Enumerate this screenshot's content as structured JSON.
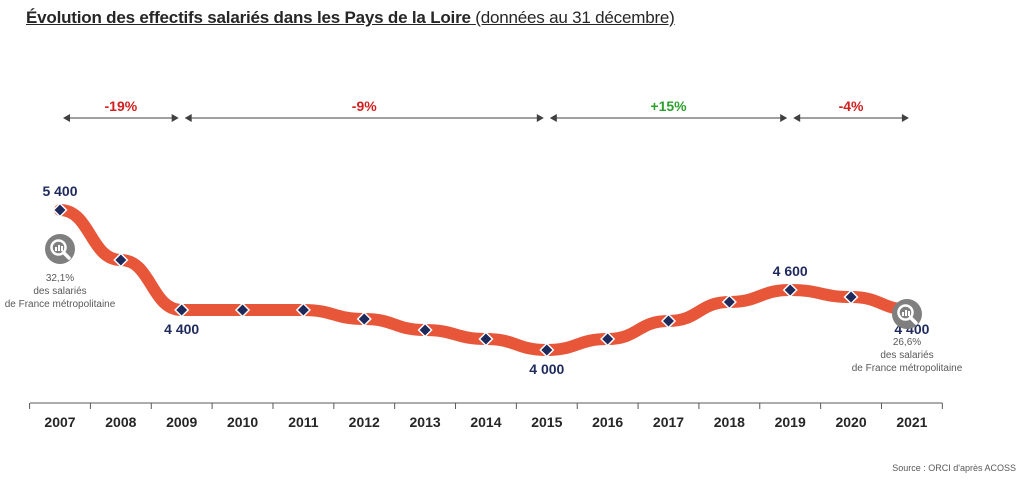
{
  "title": {
    "main": "Évolution des effectifs salariés dans les Pays de la Loire",
    "sub": "(données au 31 décembre)"
  },
  "chart_data": {
    "type": "line",
    "title": "Évolution des effectifs salariés dans les Pays de la Loire (données au 31 décembre)",
    "categories": [
      "2007",
      "2008",
      "2009",
      "2010",
      "2011",
      "2012",
      "2013",
      "2014",
      "2015",
      "2016",
      "2017",
      "2018",
      "2019",
      "2020",
      "2021"
    ],
    "series": [
      {
        "values": [
          5400,
          4900,
          4400,
          4400,
          4400,
          4310,
          4200,
          4110,
          4000,
          4110,
          4290,
          4480,
          4600,
          4530,
          4400
        ],
        "color": "#E8563A",
        "marker_color": "#1F2A5C"
      }
    ],
    "ylim": [
      3500,
      6000
    ],
    "grid": false,
    "data_labels": [
      {
        "index": 0,
        "text": "5 400"
      },
      {
        "index": 2,
        "text": "4 400"
      },
      {
        "index": 8,
        "text": "4 000"
      },
      {
        "index": 12,
        "text": "4 600"
      },
      {
        "index": 14,
        "text": "4 400"
      }
    ],
    "periods": [
      {
        "from": 0,
        "to": 2,
        "label": "-19%",
        "color": "#D11F1F"
      },
      {
        "from": 2,
        "to": 8,
        "label": "-9%",
        "color": "#D11F1F"
      },
      {
        "from": 8,
        "to": 12,
        "label": "+15%",
        "color": "#2CA02C"
      },
      {
        "from": 12,
        "to": 14,
        "label": "-4%",
        "color": "#D11F1F"
      }
    ]
  },
  "notes": [
    {
      "pct": "32,1%",
      "line1": "des salariés",
      "line2": "de France métropolitaine",
      "icon": "magnifier-chart-icon"
    },
    {
      "pct": "26,6%",
      "line1": "des salariés",
      "line2": "de France métropolitaine",
      "icon": "magnifier-chart-icon"
    }
  ],
  "source": "Source : ORCI d'après ACOSS"
}
